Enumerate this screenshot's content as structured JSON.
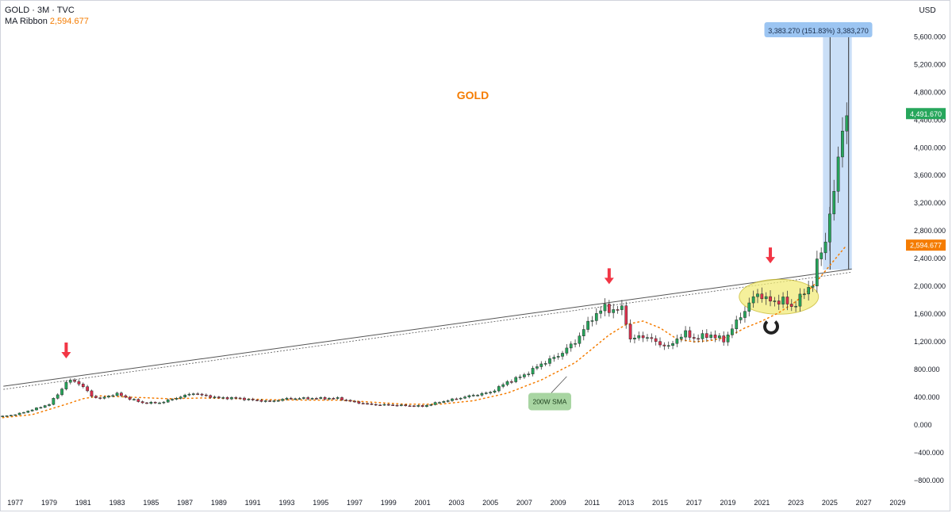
{
  "header": {
    "symbol_line": "GOLD · 3M · TVC",
    "ma_label": "MA Ribbon",
    "ma_value": "2,594.677",
    "currency_button": "USD"
  },
  "colors": {
    "up": "#26a65b",
    "down": "#e0304e",
    "ma": "#f57c00",
    "trendline": "#555555",
    "measure_fill": "#bdd7f5",
    "measure_label_bg": "#9cc5f2",
    "ellipse": "#f2ec7a",
    "arrow": "#f23645",
    "title": "#f57c00",
    "price_badge": "#26a65b",
    "ma_badge": "#f57c00",
    "sma_note_bg": "#a8d5a2"
  },
  "chart_data": {
    "type": "candlestick",
    "title": "GOLD",
    "period": "3M",
    "x_ticks": [
      "1977",
      "1979",
      "1981",
      "1983",
      "1985",
      "1987",
      "1989",
      "1991",
      "1993",
      "1995",
      "1997",
      "1999",
      "2001",
      "2003",
      "2005",
      "2007",
      "2009",
      "2011",
      "2013",
      "2015",
      "2017",
      "2019",
      "2021",
      "2023",
      "2025",
      "2027",
      "2029"
    ],
    "y_ticks": [
      "5,600.000",
      "5,200.000",
      "4,800.000",
      "4,400.000",
      "4,000.000",
      "3,600.000",
      "3,200.000",
      "2,800.000",
      "2,400.000",
      "2,000.000",
      "1,600.000",
      "1,200.000",
      "800.000",
      "400.000",
      "0.000",
      "−400.000",
      "−800.000"
    ],
    "ylim": [
      -960,
      6130
    ],
    "xlim": [
      1976.1,
      2029.4
    ],
    "last_price": 4491.67,
    "last_price_label": "4,491.670",
    "ma_badge_label": "2,594.677",
    "close_points": [
      [
        1976.0,
        120
      ],
      [
        1977.0,
        150
      ],
      [
        1978.0,
        220
      ],
      [
        1979.0,
        300
      ],
      [
        1979.75,
        520
      ],
      [
        1980.0,
        620
      ],
      [
        1980.5,
        640
      ],
      [
        1981.0,
        550
      ],
      [
        1981.5,
        420
      ],
      [
        1982.0,
        380
      ],
      [
        1982.5,
        420
      ],
      [
        1983.0,
        450
      ],
      [
        1983.5,
        400
      ],
      [
        1984.0,
        360
      ],
      [
        1984.5,
        320
      ],
      [
        1985.5,
        320
      ],
      [
        1986.5,
        390
      ],
      [
        1987.5,
        460
      ],
      [
        1988.0,
        430
      ],
      [
        1989.0,
        390
      ],
      [
        1990.0,
        390
      ],
      [
        1991.0,
        360
      ],
      [
        1992.0,
        340
      ],
      [
        1993.0,
        380
      ],
      [
        1994.0,
        385
      ],
      [
        1995.0,
        385
      ],
      [
        1996.0,
        385
      ],
      [
        1997.0,
        330
      ],
      [
        1998.0,
        295
      ],
      [
        1999.0,
        290
      ],
      [
        2000.0,
        280
      ],
      [
        2001.0,
        270
      ],
      [
        2002.0,
        330
      ],
      [
        2003.0,
        380
      ],
      [
        2004.0,
        430
      ],
      [
        2005.0,
        470
      ],
      [
        2006.0,
        620
      ],
      [
        2007.0,
        720
      ],
      [
        2008.0,
        880
      ],
      [
        2009.0,
        1000
      ],
      [
        2010.0,
        1200
      ],
      [
        2011.0,
        1550
      ],
      [
        2011.75,
        1700
      ],
      [
        2012.25,
        1650
      ],
      [
        2012.75,
        1680
      ],
      [
        2013.0,
        1500
      ],
      [
        2013.25,
        1230
      ],
      [
        2014.0,
        1290
      ],
      [
        2014.75,
        1200
      ],
      [
        2015.5,
        1120
      ],
      [
        2016.0,
        1250
      ],
      [
        2016.5,
        1320
      ],
      [
        2017.0,
        1250
      ],
      [
        2018.0,
        1300
      ],
      [
        2018.75,
        1220
      ],
      [
        2019.5,
        1480
      ],
      [
        2020.25,
        1750
      ],
      [
        2020.75,
        1900
      ],
      [
        2021.5,
        1780
      ],
      [
        2022.25,
        1800
      ],
      [
        2022.75,
        1700
      ],
      [
        2023.5,
        1900
      ],
      [
        2024.0,
        2060
      ],
      [
        2024.25,
        2330
      ],
      [
        2024.75,
        2650
      ],
      [
        2025.0,
        3100
      ],
      [
        2025.25,
        3300
      ],
      [
        2025.5,
        3850
      ],
      [
        2025.75,
        4300
      ],
      [
        2026.0,
        4491.67
      ]
    ],
    "ma_points": [
      [
        1976.0,
        100
      ],
      [
        1978.0,
        150
      ],
      [
        1980.0,
        300
      ],
      [
        1981.0,
        380
      ],
      [
        1982.0,
        420
      ],
      [
        1984.0,
        400
      ],
      [
        1986.0,
        380
      ],
      [
        1988.0,
        390
      ],
      [
        1990.0,
        380
      ],
      [
        1992.0,
        365
      ],
      [
        1994.0,
        360
      ],
      [
        1996.0,
        360
      ],
      [
        1998.0,
        330
      ],
      [
        2000.0,
        300
      ],
      [
        2002.0,
        300
      ],
      [
        2004.0,
        350
      ],
      [
        2006.0,
        460
      ],
      [
        2008.0,
        650
      ],
      [
        2010.0,
        900
      ],
      [
        2012.0,
        1300
      ],
      [
        2013.0,
        1450
      ],
      [
        2014.0,
        1500
      ],
      [
        2015.0,
        1400
      ],
      [
        2016.0,
        1240
      ],
      [
        2017.0,
        1200
      ],
      [
        2018.0,
        1220
      ],
      [
        2019.0,
        1270
      ],
      [
        2020.0,
        1400
      ],
      [
        2021.0,
        1500
      ],
      [
        2022.0,
        1620
      ],
      [
        2023.0,
        1780
      ],
      [
        2024.0,
        2000
      ],
      [
        2025.0,
        2300
      ],
      [
        2026.0,
        2594.677
      ]
    ],
    "trendline": [
      [
        1976.3,
        560
      ],
      [
        2026.3,
        2250
      ]
    ],
    "annotations": {
      "chart_title": "GOLD",
      "measure_label": "3,383.270 (151.83%) 3,383,270",
      "measure_range": {
        "x0": 2024.6,
        "x1": 2026.3,
        "y0": 2240,
        "y1": 5620
      },
      "sma_note": "200W SMA",
      "sma_note_at": [
        2008.5,
        350
      ],
      "ellipse_center": [
        2022.0,
        1850
      ],
      "arrows": [
        [
          1980.0,
          1030
        ],
        [
          2012.0,
          2100
        ],
        [
          2021.5,
          2400
        ]
      ]
    }
  }
}
